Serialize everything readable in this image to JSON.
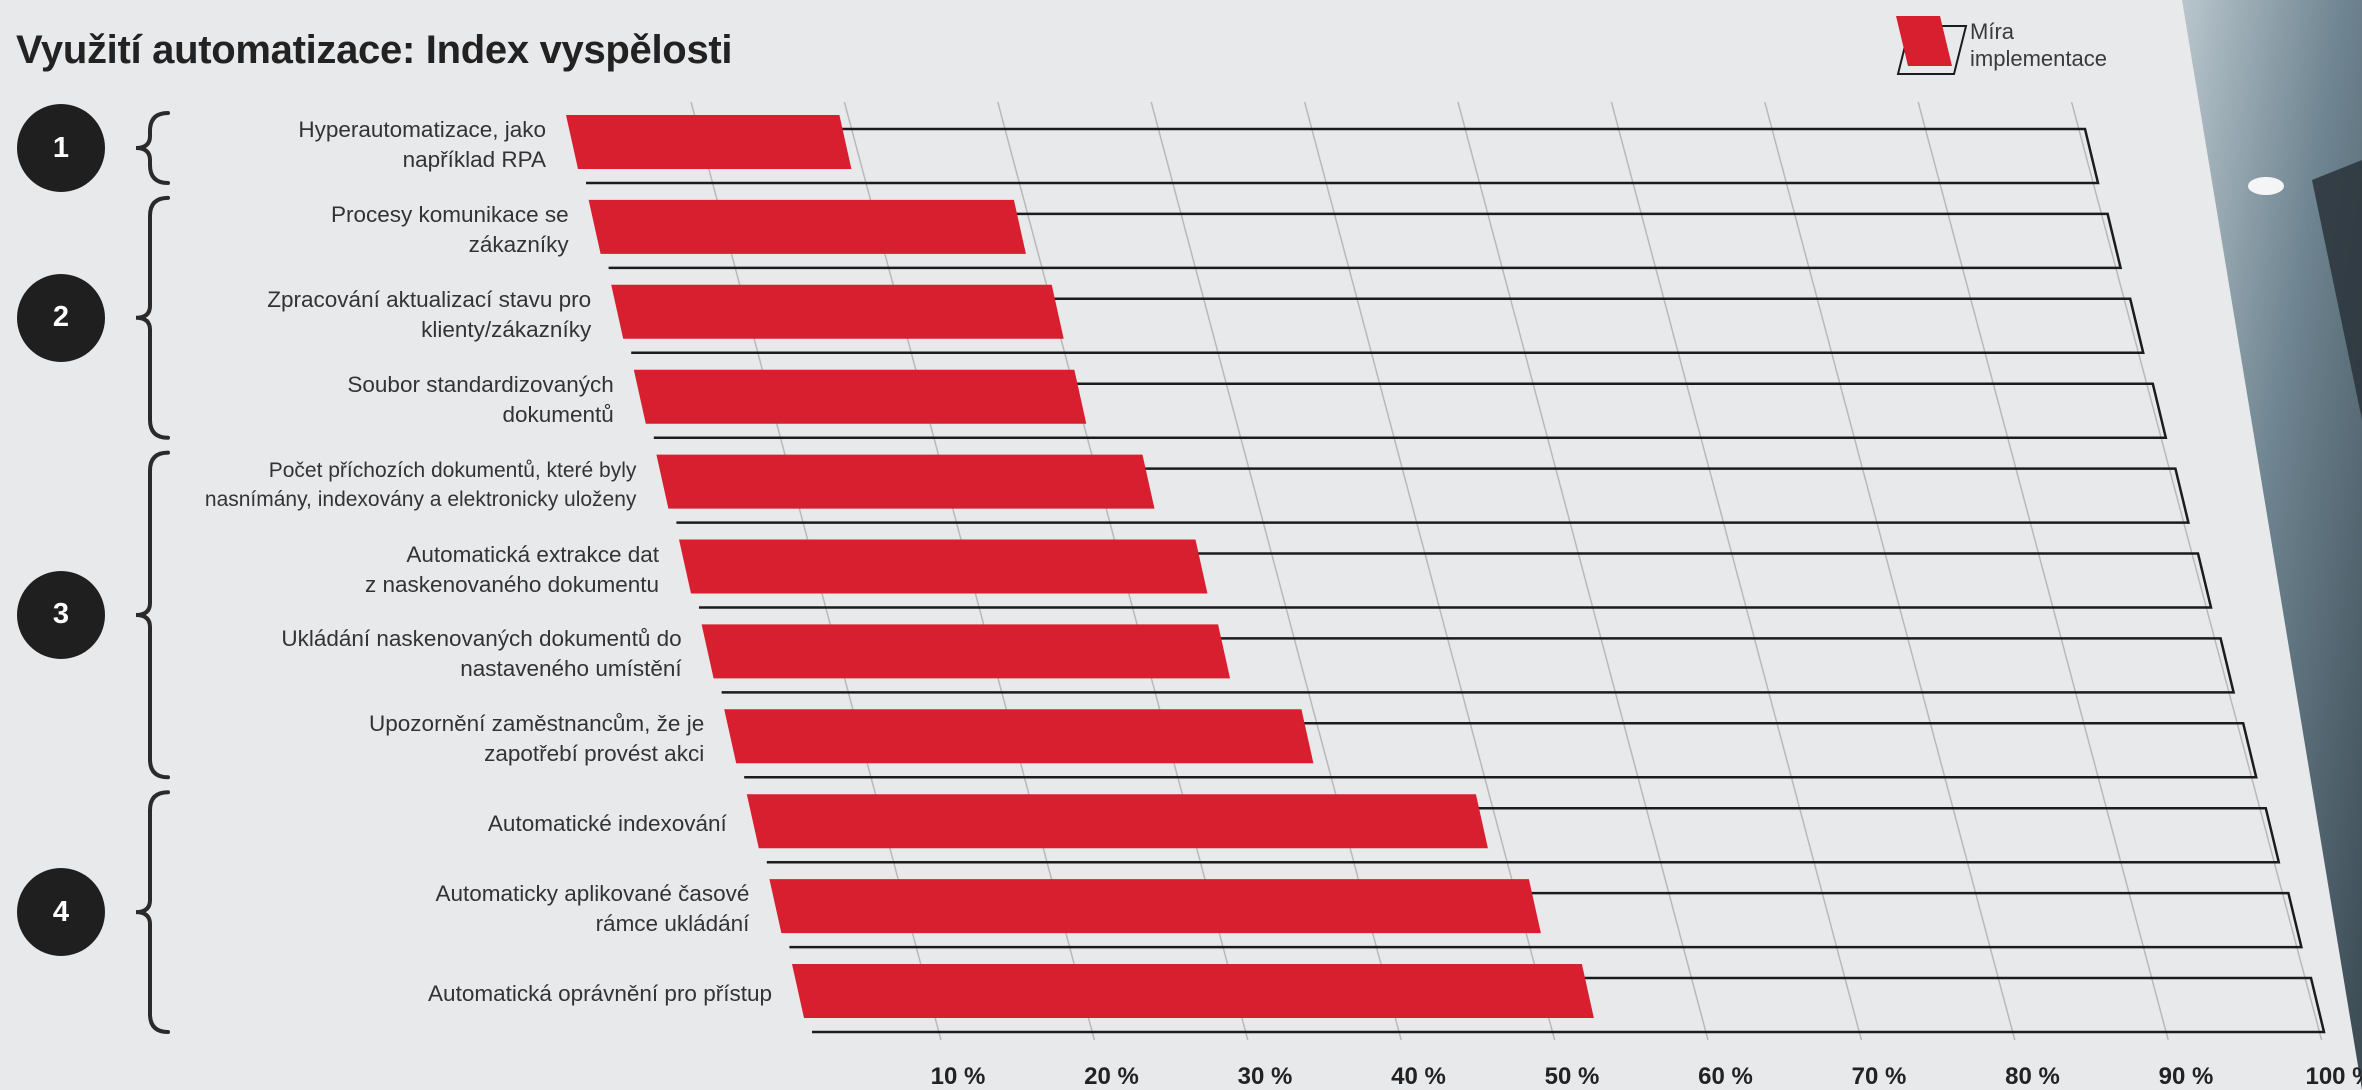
{
  "colors": {
    "accent": "#d81f2f",
    "outline": "#1c1c1c",
    "grid": "#b9b9b9",
    "background": "#e8e9eb"
  },
  "chart_data": {
    "type": "bar",
    "orientation": "horizontal",
    "title": "Využití automatizace: Index vyspělosti",
    "legend": {
      "position": "top-right",
      "label": "Míra\nimplementace"
    },
    "x_ticks": [
      "10 %",
      "20 %",
      "30 %",
      "40 %",
      "50 %",
      "60 %",
      "70 %",
      "80 %",
      "90 %",
      "100 %"
    ],
    "xlim": [
      0,
      100
    ],
    "grid": true,
    "groups": [
      {
        "label": "1",
        "first": 0,
        "last": 0
      },
      {
        "label": "2",
        "first": 1,
        "last": 3
      },
      {
        "label": "3",
        "first": 4,
        "last": 7
      },
      {
        "label": "4",
        "first": 8,
        "last": 10
      }
    ],
    "categories": [
      "Hyperautomatizace, jako\nnapříklad RPA",
      "Procesy komunikace se\nzákazníky",
      "Zpracování aktualizací stavu pro\nklienty/zákazníky",
      "Soubor standardizovaných\ndokumentů",
      "Počet příchozích dokumentů, které byly\nnasnímány, indexovány a elektronicky uloženy",
      "Automatická extrakce dat\nz naskenovaného dokumentu",
      "Ukládání naskenovaných dokumentů do\nnastaveného umístění",
      "Upozornění zaměstnancům, že je\nzapotřebí provést akci",
      "Automatické indexování",
      "Automaticky aplikované časové\nrámce ukládání",
      "Automatická oprávnění pro přístup"
    ],
    "series": [
      {
        "name": "Míra\nimplementace",
        "values": [
          18,
          28,
          29,
          29,
          32,
          34,
          34,
          38,
          48,
          50,
          52
        ]
      }
    ]
  }
}
